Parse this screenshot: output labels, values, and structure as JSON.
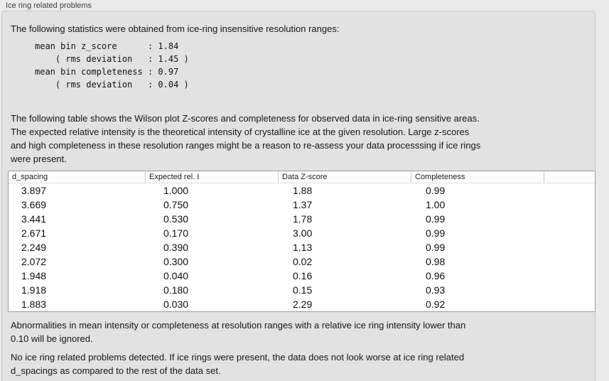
{
  "panel": {
    "title": "Ice ring related problems",
    "stats_intro": "The following statistics were obtained from ice-ring insensitive resolution ranges:",
    "stats_block": "mean bin z_score      : 1.84\n    ( rms deviation   : 1.45 )\nmean bin completeness : 0.97\n    ( rms deviation   : 0.04 )",
    "stats": {
      "mean_bin_z_score": "1.84",
      "z_score_rms_deviation": "1.45",
      "mean_bin_completeness": "0.97",
      "completeness_rms_deviation": "0.04"
    },
    "table_description": [
      "The following table shows the Wilson plot Z-scores and completeness for observed data in ice-ring sensitive areas.",
      "The expected relative intensity is the theoretical intensity of crystalline ice at the given resolution. Large z-scores",
      "and high completeness in these resolution ranges might be a reason to re-assess your data processsing if ice rings",
      "were present."
    ],
    "ignore_note": [
      "Abnormalities in mean intensity or completeness at resolution ranges with a relative ice ring intensity lower than",
      "0.10 will be ignored."
    ],
    "conclusion": [
      "No ice ring related problems detected. If ice rings were present, the data does not look worse at ice ring related",
      "d_spacings as compared to the rest of the data set."
    ]
  },
  "table": {
    "headers": [
      "d_spacing",
      "Expected rel. I",
      "Data Z-score",
      "Completeness"
    ],
    "rows": [
      [
        "3.897",
        "1.000",
        "1.88",
        "0.99"
      ],
      [
        "3.669",
        "0.750",
        "1.37",
        "1.00"
      ],
      [
        "3.441",
        "0.530",
        "1.78",
        "0.99"
      ],
      [
        "2.671",
        "0.170",
        "3.00",
        "0.99"
      ],
      [
        "2.249",
        "0.390",
        "1.13",
        "0.99"
      ],
      [
        "2.072",
        "0.300",
        "0.02",
        "0.98"
      ],
      [
        "1.948",
        "0.040",
        "0.16",
        "0.96"
      ],
      [
        "1.918",
        "0.180",
        "0.15",
        "0.93"
      ],
      [
        "1.883",
        "0.030",
        "2.29",
        "0.92"
      ]
    ]
  },
  "colors": {
    "window_bg": "#ebebeb",
    "panel_bg": "#e2e2e2",
    "panel_border": "#c6c6c6",
    "table_bg": "#ffffff",
    "table_border": "#9b9b9b",
    "text": "#161616"
  }
}
